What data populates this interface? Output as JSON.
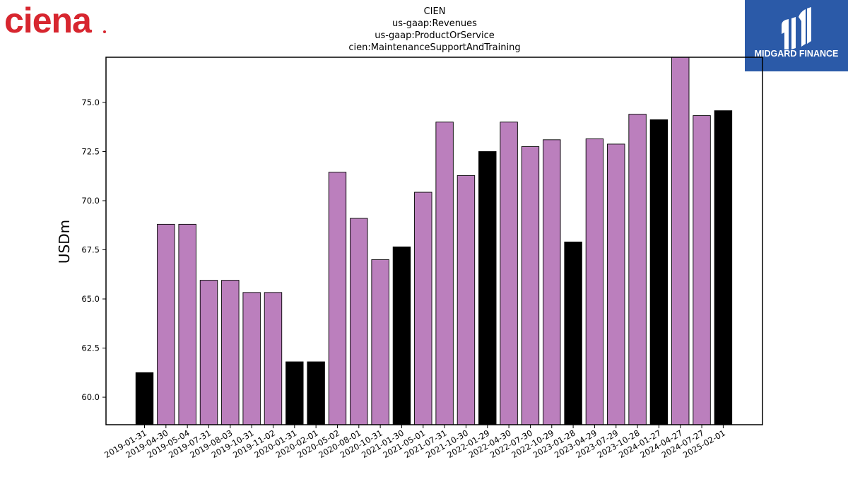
{
  "brand_left": {
    "text": "ciena",
    "color": "#d7262f"
  },
  "brand_right": {
    "text": "MIDGARD FINANCE",
    "bg_color": "#2b5aa8",
    "icon": "midgard-logo-icon"
  },
  "chart_data": {
    "type": "bar",
    "title_lines": [
      "CIEN",
      "us-gaap:Revenues",
      "us-gaap:ProductOrService",
      "cien:MaintenanceSupportAndTraining"
    ],
    "xlabel": "",
    "ylabel": "USDm",
    "ylim": [
      58.6,
      77.3
    ],
    "yticks": [
      "60.0",
      "62.5",
      "65.0",
      "67.5",
      "70.0",
      "72.5",
      "75.0"
    ],
    "grid": false,
    "colors": {
      "annual": "#000000",
      "quarterly": "#bb7fbd"
    },
    "categories": [
      "2019-01-31",
      "2019-04-30",
      "2019-05-04",
      "2019-07-31",
      "2019-08-03",
      "2019-10-31",
      "2019-11-02",
      "2020-01-31",
      "2020-02-01",
      "2020-05-02",
      "2020-08-01",
      "2020-10-31",
      "2021-01-30",
      "2021-05-01",
      "2021-07-31",
      "2021-10-30",
      "2022-01-29",
      "2022-04-30",
      "2022-07-30",
      "2022-10-29",
      "2023-01-28",
      "2023-04-29",
      "2023-07-29",
      "2023-10-28",
      "2024-01-27",
      "2024-04-27",
      "2024-07-27",
      "2025-02-01"
    ],
    "values": [
      61.25,
      68.8,
      68.8,
      65.95,
      65.95,
      65.33,
      65.33,
      61.8,
      61.8,
      71.45,
      69.1,
      67.0,
      67.65,
      70.43,
      74.0,
      71.28,
      72.5,
      74.0,
      72.75,
      73.1,
      67.9,
      73.15,
      72.88,
      74.4,
      74.12,
      77.3,
      74.33,
      74.58
    ],
    "highlight": [
      true,
      false,
      false,
      false,
      false,
      false,
      false,
      true,
      true,
      false,
      false,
      false,
      true,
      false,
      false,
      false,
      true,
      false,
      false,
      false,
      true,
      false,
      false,
      false,
      true,
      false,
      false,
      true
    ]
  }
}
